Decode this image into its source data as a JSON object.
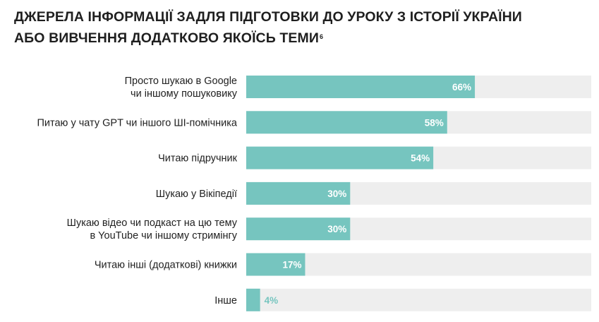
{
  "title_line1": "ДЖЕРЕЛА ІНФОРМАЦІЇ ЗАДЛЯ ПІДГОТОВКИ ДО УРОКУ З ІСТОРІЇ УКРАЇНИ",
  "title_line2": "АБО ВИВЧЕННЯ ДОДАТКОВО ЯКОЇСЬ ТЕМИ",
  "title_footnote": "6",
  "colors": {
    "bar": "#76c5bf",
    "track": "#eeeeee",
    "label_inside": "#ffffff",
    "label_outside": "#76c5bf"
  },
  "chart_data": {
    "type": "bar",
    "orientation": "horizontal",
    "categories": [
      [
        "Просто шукаю в Google",
        "чи іншому пошуковику"
      ],
      [
        "Питаю у чату GPT чи іншого ШІ-помічника"
      ],
      [
        "Читаю підручник"
      ],
      [
        "Шукаю у Вікіпедії"
      ],
      [
        "Шукаю відео чи подкаст на цю тему",
        "в YouTube чи іншому стримінгу"
      ],
      [
        "Читаю інші (додаткові) книжки"
      ],
      [
        "Інше"
      ]
    ],
    "values": [
      66,
      58,
      54,
      30,
      30,
      17,
      4
    ],
    "value_labels": [
      "66%",
      "58%",
      "54%",
      "30%",
      "30%",
      "17%",
      "4%"
    ],
    "xlim": [
      0,
      100
    ],
    "grid": false,
    "legend": "none"
  }
}
